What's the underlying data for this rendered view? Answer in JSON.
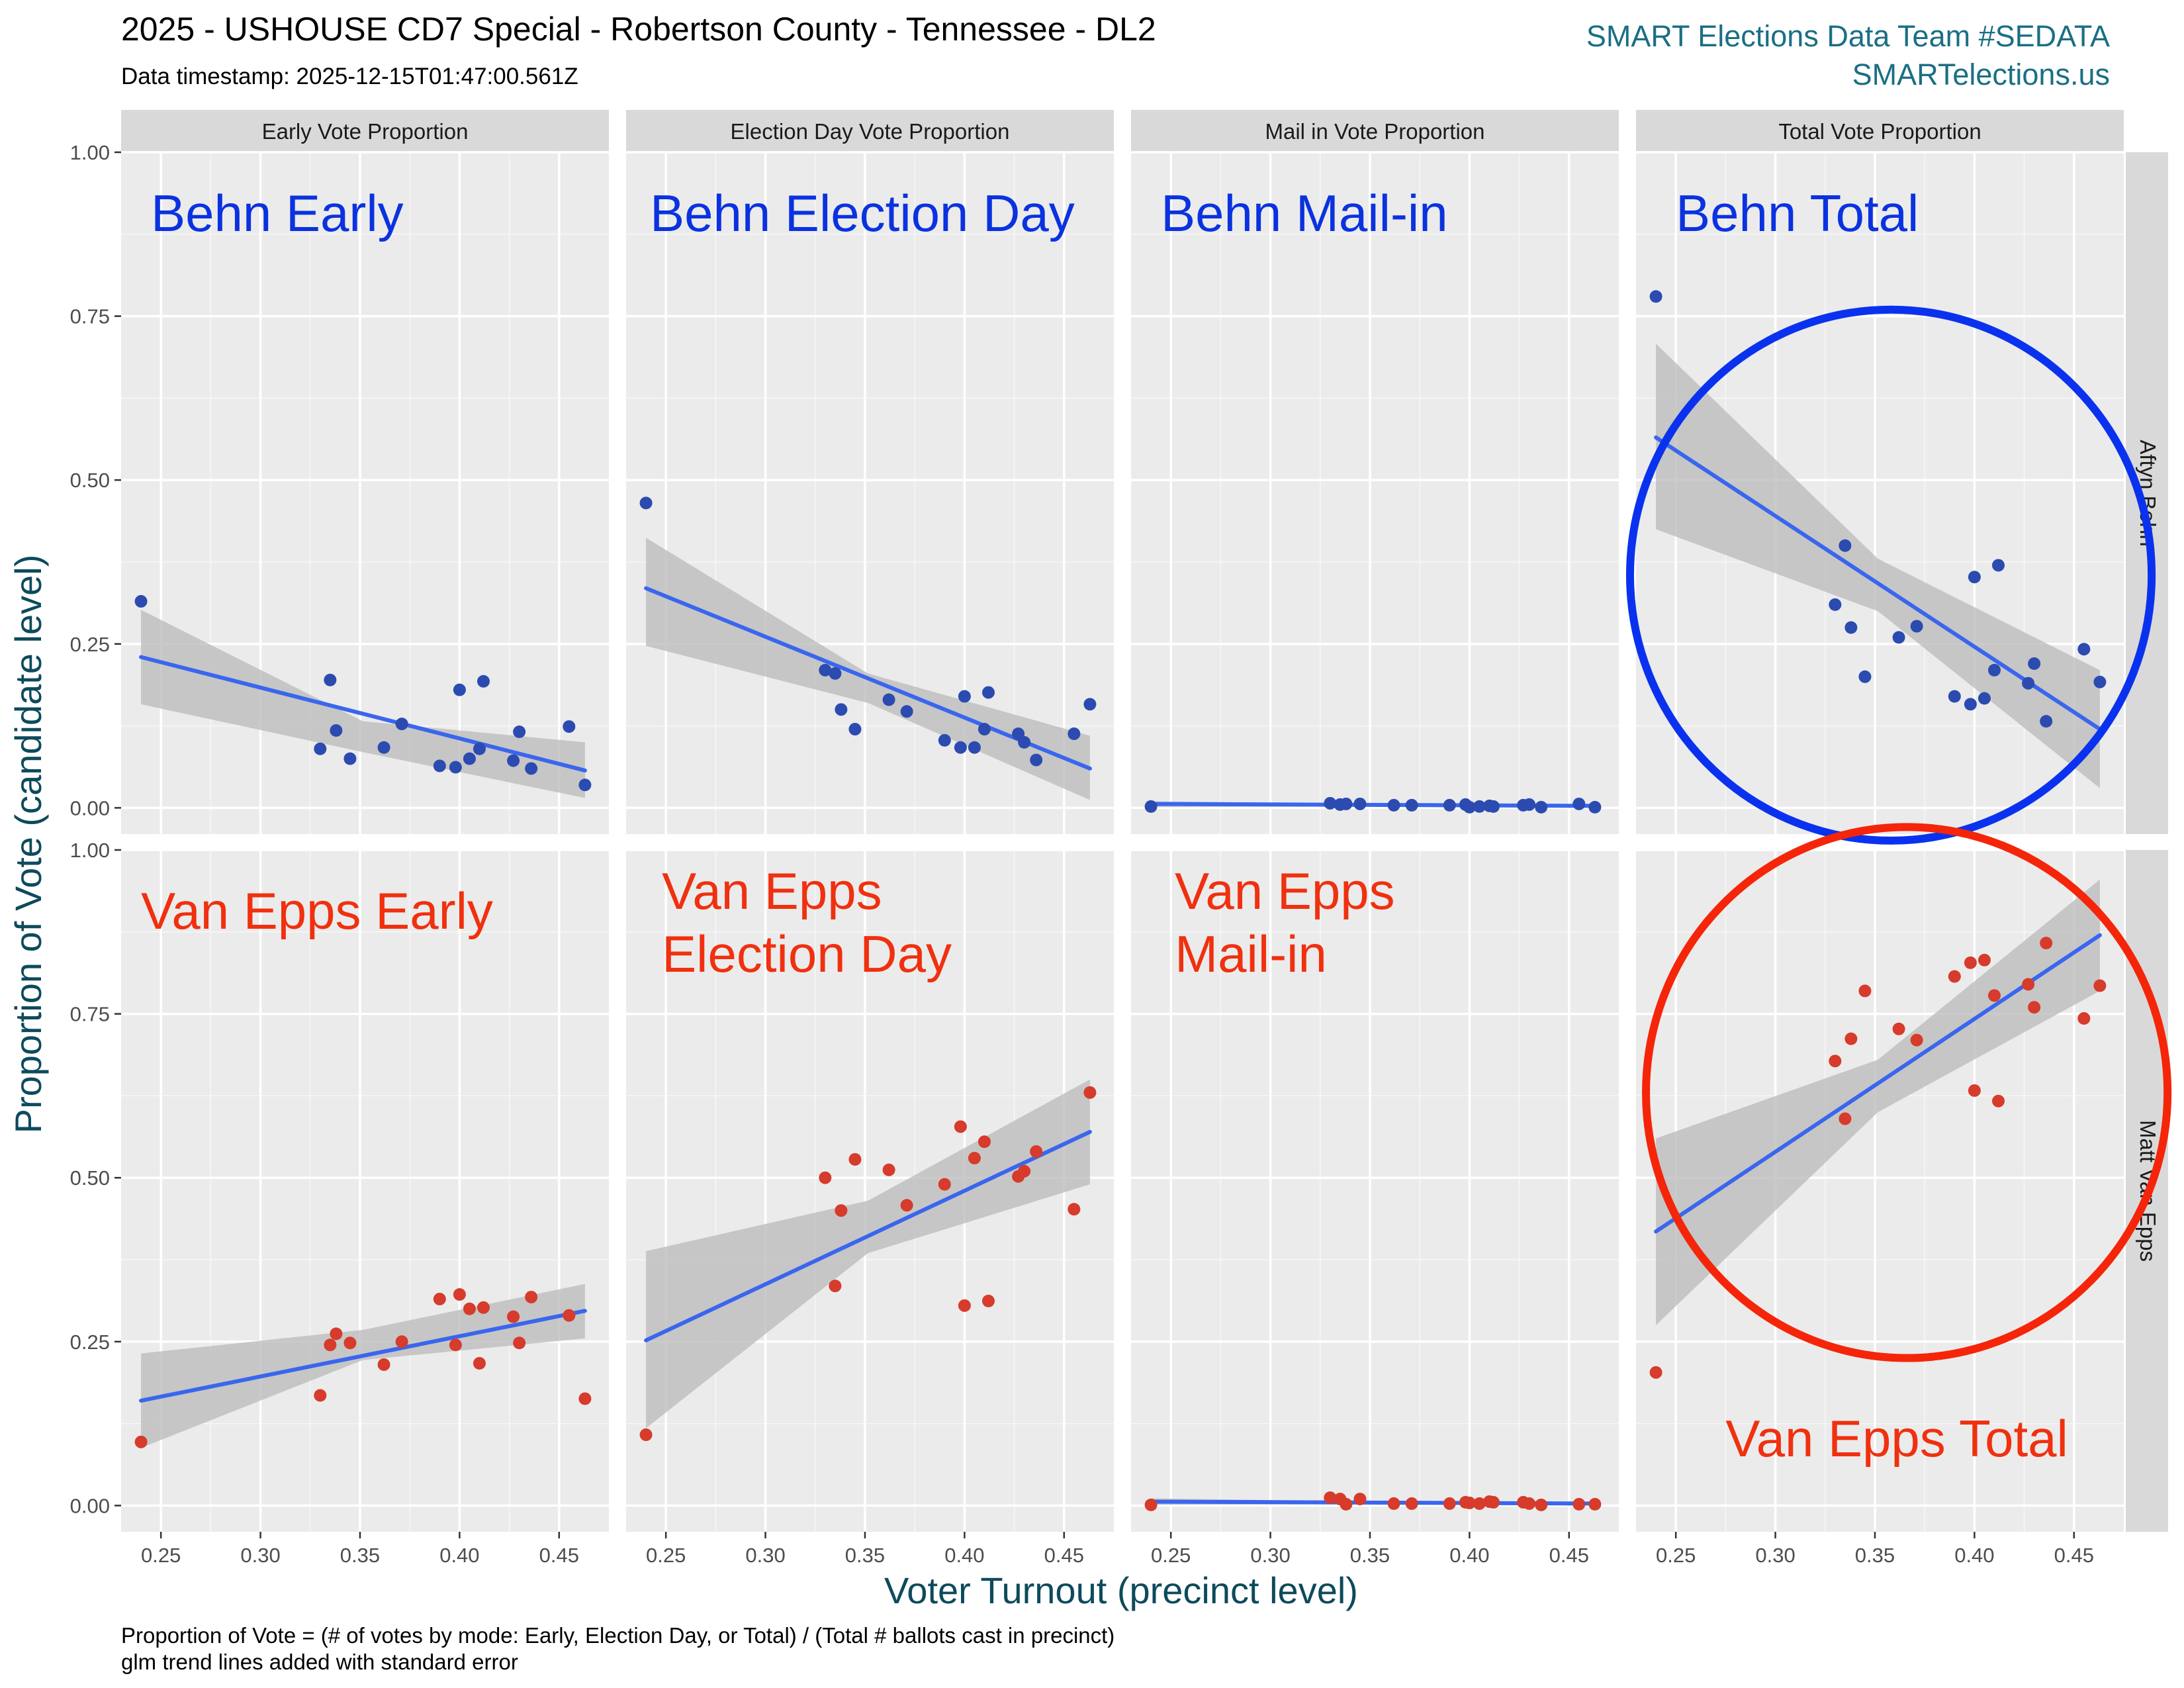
{
  "title": "2025 - USHOUSE CD7 Special - Robertson County - Tennessee - DL2",
  "subtitle": "Data timestamp: 2025-12-15T01:47:00.561Z",
  "credit_line1": "SMART Elections Data Team #SEDATA",
  "credit_line2": "SMARTelections.us",
  "caption_line1": "Proportion of Vote = (# of votes by mode: Early, Election Day, or Total) / (Total # ballots cast in precinct)",
  "caption_line2": "glm trend lines added with standard error",
  "colors": {
    "behn_points": "#2b4bb0",
    "vanepps_points": "#d63b2b",
    "trend_line": "#3a66ee",
    "ribbon": "#bdbdbd",
    "panel_bg": "#ebebeb",
    "strip_bg": "#d9d9d9",
    "behn_annotation": "#0a32e0",
    "vanepps_annotation": "#f0300f",
    "behn_circle": "#0a32ee",
    "vanepps_circle": "#f5250a"
  },
  "chart_data": {
    "type": "scatter",
    "xlabel": "Voter Turnout (precinct level)",
    "ylabel": "Proportion of Vote (candidate level)",
    "xlim": [
      0.23,
      0.475
    ],
    "ylim": [
      -0.04,
      1.0
    ],
    "xticks": [
      "0.25",
      "0.30",
      "0.35",
      "0.40",
      "0.45"
    ],
    "yticks": [
      "0.00",
      "0.25",
      "0.50",
      "0.75",
      "1.00"
    ],
    "grid": true,
    "columns": [
      "Early Vote Proportion",
      "Election Day Vote Proportion",
      "Mail in Vote Proportion",
      "Total Vote Proportion"
    ],
    "rows": [
      "Aftyn Behn",
      "Matt Van Epps"
    ],
    "annotations": [
      {
        "row": 0,
        "col": 0,
        "lines": [
          "Behn Early"
        ]
      },
      {
        "row": 0,
        "col": 1,
        "lines": [
          "Behn Election Day"
        ]
      },
      {
        "row": 0,
        "col": 2,
        "lines": [
          "Behn Mail-in"
        ]
      },
      {
        "row": 0,
        "col": 3,
        "lines": [
          "Behn Total"
        ]
      },
      {
        "row": 1,
        "col": 0,
        "lines": [
          "Van Epps Early"
        ]
      },
      {
        "row": 1,
        "col": 1,
        "lines": [
          "Van Epps",
          "Election Day"
        ]
      },
      {
        "row": 1,
        "col": 2,
        "lines": [
          "Van Epps",
          "Mail-in"
        ]
      },
      {
        "row": 1,
        "col": 3,
        "lines": [
          "Van Epps Total"
        ]
      }
    ],
    "panels": [
      {
        "row": 0,
        "col": 0,
        "points": [
          [
            0.24,
            0.315
          ],
          [
            0.33,
            0.09
          ],
          [
            0.335,
            0.195
          ],
          [
            0.338,
            0.118
          ],
          [
            0.345,
            0.075
          ],
          [
            0.362,
            0.092
          ],
          [
            0.371,
            0.128
          ],
          [
            0.39,
            0.064
          ],
          [
            0.398,
            0.062
          ],
          [
            0.4,
            0.18
          ],
          [
            0.405,
            0.075
          ],
          [
            0.41,
            0.09
          ],
          [
            0.412,
            0.193
          ],
          [
            0.427,
            0.072
          ],
          [
            0.43,
            0.116
          ],
          [
            0.436,
            0.06
          ],
          [
            0.455,
            0.124
          ],
          [
            0.463,
            0.035
          ]
        ],
        "trend": {
          "x0": 0.24,
          "y0": 0.23,
          "x1": 0.463,
          "y1": 0.057
        },
        "se": {
          "lo": [
            0.158,
            0.085,
            0.015
          ],
          "hi": [
            0.302,
            0.132,
            0.1
          ]
        }
      },
      {
        "row": 0,
        "col": 1,
        "points": [
          [
            0.24,
            0.465
          ],
          [
            0.33,
            0.21
          ],
          [
            0.335,
            0.205
          ],
          [
            0.338,
            0.15
          ],
          [
            0.345,
            0.12
          ],
          [
            0.362,
            0.165
          ],
          [
            0.371,
            0.147
          ],
          [
            0.39,
            0.103
          ],
          [
            0.398,
            0.092
          ],
          [
            0.4,
            0.17
          ],
          [
            0.405,
            0.092
          ],
          [
            0.41,
            0.12
          ],
          [
            0.412,
            0.176
          ],
          [
            0.427,
            0.113
          ],
          [
            0.43,
            0.1
          ],
          [
            0.436,
            0.073
          ],
          [
            0.455,
            0.113
          ],
          [
            0.463,
            0.158
          ]
        ],
        "trend": {
          "x0": 0.24,
          "y0": 0.335,
          "x1": 0.463,
          "y1": 0.06
        },
        "se": {
          "lo": [
            0.247,
            0.16,
            0.012
          ],
          "hi": [
            0.412,
            0.205,
            0.11
          ]
        }
      },
      {
        "row": 0,
        "col": 2,
        "points": [
          [
            0.24,
            0.002
          ],
          [
            0.33,
            0.007
          ],
          [
            0.335,
            0.005
          ],
          [
            0.338,
            0.006
          ],
          [
            0.345,
            0.006
          ],
          [
            0.362,
            0.004
          ],
          [
            0.371,
            0.004
          ],
          [
            0.39,
            0.004
          ],
          [
            0.398,
            0.005
          ],
          [
            0.4,
            0.001
          ],
          [
            0.405,
            0.002
          ],
          [
            0.41,
            0.003
          ],
          [
            0.412,
            0.002
          ],
          [
            0.427,
            0.004
          ],
          [
            0.43,
            0.005
          ],
          [
            0.436,
            0.001
          ],
          [
            0.455,
            0.006
          ],
          [
            0.463,
            0.001
          ]
        ],
        "trend": {
          "x0": 0.24,
          "y0": 0.006,
          "x1": 0.463,
          "y1": 0.003
        },
        "se": {
          "lo": [
            0.001,
            0.002,
            0.0
          ],
          "hi": [
            0.01,
            0.006,
            0.006
          ]
        }
      },
      {
        "row": 0,
        "col": 3,
        "points": [
          [
            0.24,
            0.78
          ],
          [
            0.33,
            0.31
          ],
          [
            0.335,
            0.4
          ],
          [
            0.338,
            0.275
          ],
          [
            0.345,
            0.2
          ],
          [
            0.362,
            0.26
          ],
          [
            0.371,
            0.277
          ],
          [
            0.39,
            0.17
          ],
          [
            0.398,
            0.158
          ],
          [
            0.4,
            0.352
          ],
          [
            0.405,
            0.167
          ],
          [
            0.41,
            0.21
          ],
          [
            0.412,
            0.37
          ],
          [
            0.427,
            0.19
          ],
          [
            0.43,
            0.22
          ],
          [
            0.436,
            0.132
          ],
          [
            0.455,
            0.242
          ],
          [
            0.463,
            0.192
          ]
        ],
        "trend": {
          "x0": 0.24,
          "y0": 0.565,
          "x1": 0.463,
          "y1": 0.12
        },
        "se": {
          "lo": [
            0.425,
            0.3,
            0.03
          ],
          "hi": [
            0.708,
            0.38,
            0.21
          ]
        }
      },
      {
        "row": 1,
        "col": 0,
        "points": [
          [
            0.24,
            0.097
          ],
          [
            0.33,
            0.168
          ],
          [
            0.335,
            0.245
          ],
          [
            0.338,
            0.262
          ],
          [
            0.345,
            0.248
          ],
          [
            0.362,
            0.215
          ],
          [
            0.371,
            0.25
          ],
          [
            0.39,
            0.315
          ],
          [
            0.398,
            0.245
          ],
          [
            0.4,
            0.322
          ],
          [
            0.405,
            0.3
          ],
          [
            0.41,
            0.217
          ],
          [
            0.412,
            0.302
          ],
          [
            0.427,
            0.288
          ],
          [
            0.43,
            0.248
          ],
          [
            0.436,
            0.318
          ],
          [
            0.455,
            0.29
          ],
          [
            0.463,
            0.163
          ]
        ],
        "trend": {
          "x0": 0.24,
          "y0": 0.16,
          "x1": 0.463,
          "y1": 0.297
        },
        "se": {
          "lo": [
            0.088,
            0.222,
            0.255
          ],
          "hi": [
            0.232,
            0.268,
            0.338
          ]
        }
      },
      {
        "row": 1,
        "col": 1,
        "points": [
          [
            0.24,
            0.108
          ],
          [
            0.33,
            0.5
          ],
          [
            0.335,
            0.335
          ],
          [
            0.338,
            0.45
          ],
          [
            0.345,
            0.528
          ],
          [
            0.362,
            0.512
          ],
          [
            0.371,
            0.458
          ],
          [
            0.39,
            0.49
          ],
          [
            0.398,
            0.578
          ],
          [
            0.4,
            0.305
          ],
          [
            0.405,
            0.53
          ],
          [
            0.41,
            0.555
          ],
          [
            0.412,
            0.312
          ],
          [
            0.427,
            0.502
          ],
          [
            0.43,
            0.51
          ],
          [
            0.436,
            0.54
          ],
          [
            0.455,
            0.452
          ],
          [
            0.463,
            0.63
          ]
        ],
        "trend": {
          "x0": 0.24,
          "y0": 0.252,
          "x1": 0.463,
          "y1": 0.57
        },
        "se": {
          "lo": [
            0.118,
            0.385,
            0.49
          ],
          "hi": [
            0.388,
            0.465,
            0.65
          ]
        }
      },
      {
        "row": 1,
        "col": 2,
        "points": [
          [
            0.24,
            0.001
          ],
          [
            0.33,
            0.012
          ],
          [
            0.335,
            0.01
          ],
          [
            0.338,
            0.002
          ],
          [
            0.345,
            0.01
          ],
          [
            0.362,
            0.003
          ],
          [
            0.371,
            0.003
          ],
          [
            0.39,
            0.003
          ],
          [
            0.398,
            0.005
          ],
          [
            0.4,
            0.004
          ],
          [
            0.405,
            0.003
          ],
          [
            0.41,
            0.006
          ],
          [
            0.412,
            0.005
          ],
          [
            0.427,
            0.005
          ],
          [
            0.43,
            0.003
          ],
          [
            0.436,
            0.001
          ],
          [
            0.455,
            0.002
          ],
          [
            0.463,
            0.002
          ]
        ],
        "trend": {
          "x0": 0.24,
          "y0": 0.006,
          "x1": 0.463,
          "y1": 0.003
        },
        "se": {
          "lo": [
            0.001,
            0.002,
            0.0
          ],
          "hi": [
            0.011,
            0.006,
            0.006
          ]
        }
      },
      {
        "row": 1,
        "col": 3,
        "points": [
          [
            0.24,
            0.203
          ],
          [
            0.33,
            0.678
          ],
          [
            0.335,
            0.59
          ],
          [
            0.338,
            0.712
          ],
          [
            0.345,
            0.785
          ],
          [
            0.362,
            0.727
          ],
          [
            0.371,
            0.71
          ],
          [
            0.39,
            0.807
          ],
          [
            0.398,
            0.828
          ],
          [
            0.4,
            0.633
          ],
          [
            0.405,
            0.832
          ],
          [
            0.41,
            0.778
          ],
          [
            0.412,
            0.617
          ],
          [
            0.427,
            0.795
          ],
          [
            0.43,
            0.76
          ],
          [
            0.436,
            0.858
          ],
          [
            0.455,
            0.743
          ],
          [
            0.463,
            0.793
          ]
        ],
        "trend": {
          "x0": 0.24,
          "y0": 0.418,
          "x1": 0.463,
          "y1": 0.87
        },
        "se": {
          "lo": [
            0.275,
            0.6,
            0.785
          ],
          "hi": [
            0.56,
            0.68,
            0.955
          ]
        }
      }
    ],
    "highlights": [
      {
        "row": 0,
        "col": 3,
        "color_key": "behn_circle",
        "cx": 0.358,
        "cy": 0.355,
        "rx": 0.131,
        "ry": 0.405
      },
      {
        "row": 1,
        "col": 3,
        "color_key": "vanepps_circle",
        "cx": 0.366,
        "cy": 0.63,
        "rx": 0.131,
        "ry": 0.405
      }
    ]
  }
}
